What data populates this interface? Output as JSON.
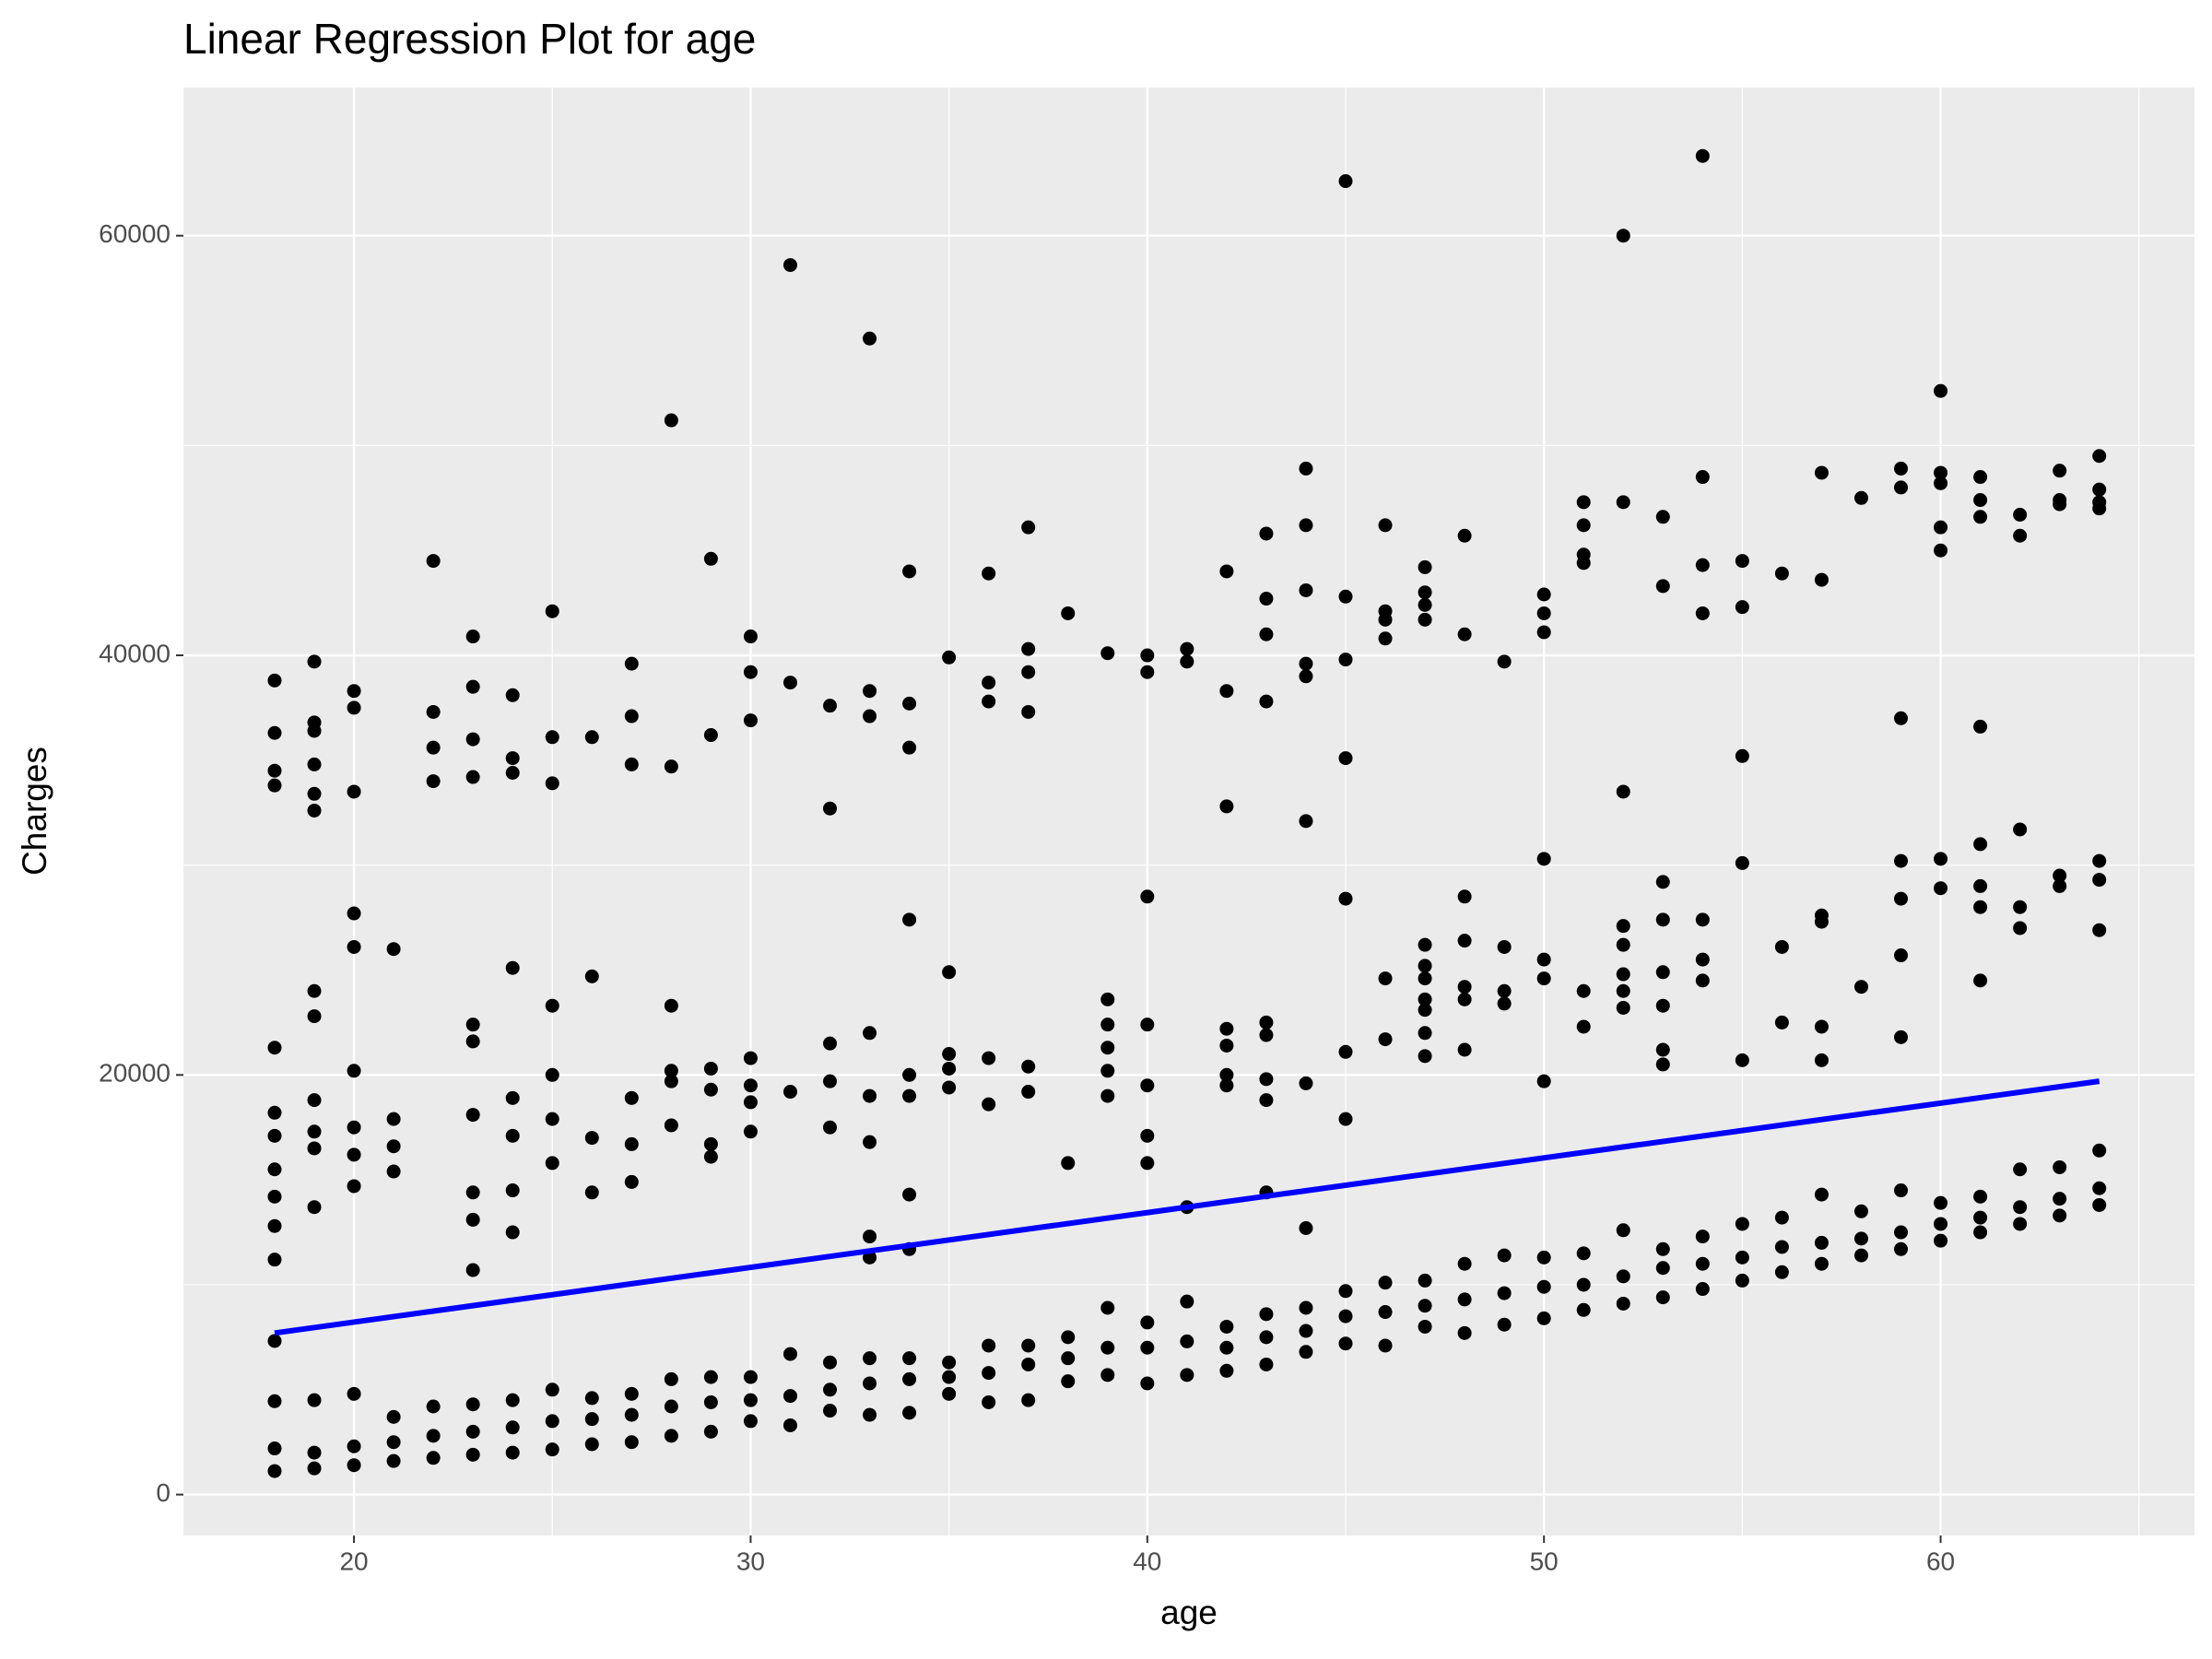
{
  "chart_data": {
    "type": "scatter",
    "title": "Linear Regression Plot for age",
    "x_label": "age",
    "y_label": "Charges",
    "xlim": [
      15.7,
      66.4
    ],
    "ylim": [
      -1950,
      67060
    ],
    "xticks": [
      20,
      30,
      40,
      50,
      60
    ],
    "yticks": [
      0,
      20000,
      40000,
      60000
    ],
    "grid": true,
    "minor_grid": true,
    "color": "#000000",
    "x": [
      18,
      18,
      18,
      18,
      19,
      19,
      19,
      20,
      20,
      20,
      21,
      21,
      21,
      22,
      22,
      22,
      23,
      23,
      23,
      24,
      24,
      24,
      25,
      25,
      25,
      26,
      26,
      26,
      27,
      27,
      27,
      28,
      28,
      28,
      29,
      29,
      29,
      30,
      30,
      30,
      31,
      31,
      31,
      32,
      32,
      32,
      33,
      33,
      33,
      34,
      34,
      34,
      35,
      35,
      35,
      36,
      36,
      36,
      37,
      37,
      37,
      38,
      38,
      38,
      39,
      39,
      39,
      40,
      40,
      40,
      41,
      41,
      41,
      42,
      42,
      42,
      43,
      43,
      43,
      44,
      44,
      44,
      45,
      45,
      45,
      46,
      46,
      46,
      47,
      47,
      47,
      48,
      48,
      48,
      49,
      49,
      49,
      50,
      50,
      50,
      51,
      51,
      51,
      52,
      52,
      52,
      53,
      53,
      53,
      54,
      54,
      54,
      55,
      55,
      55,
      56,
      56,
      56,
      57,
      57,
      57,
      58,
      58,
      58,
      59,
      59,
      59,
      60,
      60,
      60,
      61,
      61,
      61,
      62,
      62,
      62,
      63,
      63,
      63,
      64,
      64,
      64,
      18,
      18,
      18,
      18,
      18,
      18,
      18,
      19,
      19,
      19,
      19,
      19,
      19,
      20,
      20,
      20,
      20,
      20,
      20,
      21,
      21,
      21,
      21,
      23,
      23,
      23,
      23,
      23,
      23,
      24,
      24,
      24,
      24,
      24,
      25,
      25,
      25,
      25,
      26,
      26,
      26,
      27,
      27,
      27,
      28,
      28,
      28,
      28,
      29,
      29,
      29,
      29,
      30,
      30,
      30,
      30,
      31,
      32,
      32,
      32,
      33,
      33,
      33,
      33,
      33,
      34,
      34,
      34,
      34,
      34,
      35,
      35,
      35,
      35,
      36,
      36,
      37,
      37,
      38,
      39,
      39,
      39,
      39,
      39,
      40,
      40,
      40,
      40,
      40,
      41,
      42,
      42,
      42,
      42,
      43,
      43,
      43,
      43,
      43,
      44,
      44,
      45,
      45,
      45,
      46,
      46,
      47,
      47,
      47,
      47,
      47,
      47,
      47,
      48,
      48,
      48,
      48,
      48,
      49,
      49,
      49,
      50,
      50,
      50,
      50,
      51,
      51,
      52,
      52,
      52,
      52,
      52,
      52,
      53,
      53,
      53,
      53,
      53,
      53,
      54,
      54,
      54,
      55,
      55,
      55,
      56,
      56,
      57,
      57,
      57,
      57,
      58,
      59,
      59,
      59,
      59,
      59,
      60,
      60,
      61,
      61,
      61,
      61,
      61,
      62,
      62,
      62,
      63,
      63,
      64,
      64,
      64,
      18,
      18,
      18,
      18,
      19,
      19,
      19,
      19,
      19,
      19,
      20,
      20,
      20,
      22,
      22,
      22,
      22,
      23,
      23,
      23,
      23,
      24,
      24,
      24,
      25,
      25,
      25,
      26,
      27,
      27,
      27,
      28,
      28,
      29,
      29,
      30,
      30,
      30,
      31,
      31,
      32,
      32,
      33,
      33,
      33,
      34,
      34,
      34,
      35,
      36,
      36,
      36,
      37,
      37,
      37,
      37,
      38,
      39,
      40,
      40,
      41,
      41,
      42,
      42,
      42,
      43,
      43,
      43,
      43,
      44,
      44,
      44,
      44,
      44,
      44,
      45,
      45,
      45,
      45,
      46,
      46,
      46,
      46,
      47,
      47,
      47,
      47,
      48,
      48,
      49,
      50,
      50,
      50,
      51,
      51,
      51,
      51,
      52,
      52,
      53,
      53,
      54,
      54,
      54,
      54,
      55,
      55,
      56,
      57,
      57,
      58,
      59,
      59,
      60,
      60,
      60,
      60,
      60,
      61,
      61,
      61,
      62,
      62,
      63,
      63,
      63,
      64,
      64,
      64,
      64
    ],
    "values": [
      1120,
      2200,
      4450,
      7320,
      1250,
      2000,
      4500,
      1400,
      2300,
      4800,
      1600,
      2500,
      3700,
      1750,
      2800,
      4200,
      1900,
      3000,
      4300,
      2000,
      3200,
      4500,
      2150,
      3500,
      5000,
      2400,
      3600,
      4600,
      2500,
      3800,
      4800,
      2800,
      4200,
      5500,
      3000,
      4400,
      5600,
      3500,
      4500,
      5600,
      3300,
      4700,
      6700,
      4000,
      5000,
      6300,
      3800,
      5300,
      6500,
      3900,
      5500,
      6500,
      4800,
      5600,
      6300,
      4400,
      5800,
      7100,
      4500,
      6200,
      7100,
      5400,
      6500,
      7500,
      5700,
      7000,
      8900,
      5300,
      7000,
      8200,
      5700,
      7300,
      9200,
      5900,
      7000,
      8000,
      6200,
      7500,
      8600,
      6800,
      7800,
      8900,
      7200,
      8500,
      9700,
      7100,
      8700,
      10100,
      8000,
      9000,
      10200,
      7700,
      9300,
      11000,
      8100,
      9600,
      11400,
      8400,
      9900,
      11300,
      8800,
      10000,
      11500,
      9100,
      10400,
      12600,
      9400,
      10800,
      11700,
      9800,
      11000,
      12300,
      10200,
      11300,
      12900,
      10600,
      11800,
      13200,
      11000,
      12000,
      14300,
      11400,
      12200,
      13500,
      11700,
      12500,
      14500,
      12100,
      12900,
      13900,
      12500,
      13200,
      14200,
      12900,
      13700,
      15500,
      13300,
      14100,
      15600,
      13800,
      14600,
      16400,
      11200,
      12800,
      14200,
      15500,
      17100,
      18200,
      21300,
      13700,
      16500,
      17300,
      18800,
      22800,
      24000,
      14700,
      16200,
      17500,
      20200,
      26100,
      27700,
      15400,
      16600,
      17900,
      26000,
      10700,
      13100,
      14400,
      18100,
      21600,
      22400,
      12500,
      14500,
      17100,
      18900,
      25100,
      15800,
      17900,
      20000,
      23300,
      14400,
      17000,
      24700,
      14900,
      16700,
      18900,
      17600,
      19700,
      20200,
      23300,
      16100,
      16700,
      19300,
      20300,
      17300,
      18700,
      19500,
      20800,
      19200,
      17500,
      19700,
      21500,
      11300,
      12300,
      16800,
      19000,
      22000,
      11700,
      14300,
      19000,
      20000,
      27400,
      19400,
      20300,
      21000,
      24900,
      18600,
      20800,
      19200,
      20400,
      15800,
      19000,
      20200,
      21300,
      22400,
      23600,
      15800,
      17100,
      19500,
      22400,
      28500,
      13700,
      19500,
      20000,
      21400,
      22200,
      14400,
      18800,
      19800,
      21900,
      22500,
      12700,
      19600,
      17900,
      21100,
      28400,
      21700,
      24600,
      20900,
      22000,
      23100,
      23600,
      24600,
      25200,
      26200,
      21200,
      23600,
      24200,
      26400,
      28500,
      23400,
      24000,
      26100,
      19700,
      24600,
      25500,
      30300,
      22300,
      24000,
      23200,
      24000,
      24800,
      26200,
      27100,
      33500,
      20500,
      21200,
      23300,
      24900,
      27400,
      29200,
      24500,
      25500,
      27400,
      20700,
      30100,
      35200,
      22500,
      26100,
      20700,
      22300,
      27300,
      27600,
      24200,
      21800,
      25700,
      28400,
      30200,
      37000,
      28900,
      30300,
      24500,
      28000,
      29000,
      31000,
      36600,
      27000,
      28000,
      31700,
      29000,
      29500,
      26900,
      29300,
      30200,
      33800,
      34500,
      36300,
      38800,
      32600,
      33400,
      34800,
      36400,
      36800,
      39700,
      33500,
      37500,
      38300,
      34000,
      35600,
      37300,
      44500,
      34200,
      36000,
      38500,
      40900,
      34400,
      35100,
      38100,
      33900,
      36100,
      42100,
      36100,
      34800,
      37100,
      39600,
      34700,
      51200,
      36200,
      44600,
      36900,
      39200,
      40900,
      38700,
      58600,
      32700,
      37600,
      37100,
      38300,
      55100,
      35600,
      37700,
      44000,
      39900,
      37800,
      38700,
      43900,
      37300,
      39200,
      40300,
      46100,
      42000,
      40100,
      39200,
      40000,
      39700,
      40300,
      32800,
      38300,
      44000,
      37800,
      41000,
      42700,
      45800,
      32100,
      39000,
      39600,
      43100,
      46200,
      48900,
      35100,
      39800,
      42800,
      62600,
      40800,
      41700,
      42100,
      46200,
      41700,
      42400,
      43000,
      44200,
      41000,
      45700,
      39700,
      41100,
      42000,
      42900,
      44400,
      44800,
      46200,
      47300,
      47300,
      60000,
      43300,
      46600,
      42000,
      44300,
      48500,
      63800,
      42300,
      44500,
      43900,
      43600,
      48700,
      47500,
      48000,
      48900,
      45000,
      46100,
      48200,
      48700,
      52600,
      46600,
      47400,
      48500,
      45700,
      46700,
      47200,
      47400,
      48800,
      47000,
      47300,
      47900,
      49500
    ],
    "regression": {
      "x": [
        18,
        64
      ],
      "values": [
        7700,
        19700
      ],
      "color": "#0000ff"
    }
  }
}
